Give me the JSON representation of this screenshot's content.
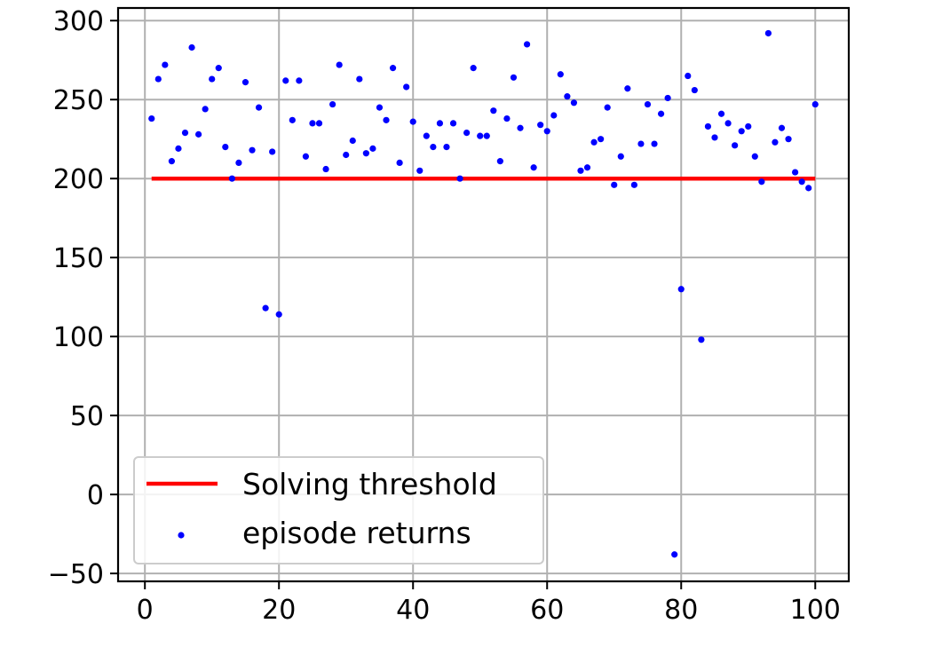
{
  "chart_data": {
    "type": "scatter",
    "title": "",
    "xlabel": "",
    "ylabel": "",
    "xlim": [
      -4,
      105
    ],
    "ylim": [
      -55,
      308
    ],
    "xticks": [
      0,
      20,
      40,
      60,
      80,
      100
    ],
    "yticks": [
      -50,
      0,
      50,
      100,
      150,
      200,
      250,
      300
    ],
    "xtick_labels": [
      "0",
      "20",
      "40",
      "60",
      "80",
      "100"
    ],
    "ytick_labels": [
      "−50",
      "0",
      "50",
      "100",
      "150",
      "200",
      "250",
      "300"
    ],
    "grid": true,
    "legend_position": "lower-left",
    "series": [
      {
        "name": "Solving threshold",
        "kind": "line",
        "color": "#ff0000",
        "x": [
          1,
          100
        ],
        "y": [
          200,
          200
        ]
      },
      {
        "name": "episode returns",
        "kind": "scatter",
        "color": "#0000ff",
        "x": [
          1,
          2,
          3,
          4,
          5,
          6,
          7,
          8,
          9,
          10,
          11,
          12,
          13,
          14,
          15,
          16,
          17,
          18,
          19,
          20,
          21,
          22,
          23,
          24,
          25,
          26,
          27,
          28,
          29,
          30,
          31,
          32,
          33,
          34,
          35,
          36,
          37,
          38,
          39,
          40,
          41,
          42,
          43,
          44,
          45,
          46,
          47,
          48,
          49,
          50,
          51,
          52,
          53,
          54,
          55,
          56,
          57,
          58,
          59,
          60,
          61,
          62,
          63,
          64,
          65,
          66,
          67,
          68,
          69,
          70,
          71,
          72,
          73,
          74,
          75,
          76,
          77,
          78,
          79,
          80,
          81,
          82,
          83,
          84,
          85,
          86,
          87,
          88,
          89,
          90,
          91,
          92,
          93,
          94,
          95,
          96,
          97,
          98,
          99,
          100
        ],
        "y": [
          238,
          263,
          272,
          211,
          219,
          229,
          283,
          228,
          244,
          263,
          270,
          220,
          200,
          210,
          261,
          218,
          245,
          118,
          217,
          114,
          262,
          237,
          262,
          214,
          235,
          235,
          206,
          247,
          272,
          215,
          224,
          263,
          216,
          219,
          245,
          237,
          270,
          210,
          258,
          236,
          205,
          227,
          220,
          235,
          220,
          235,
          200,
          229,
          270,
          227,
          227,
          243,
          211,
          238,
          264,
          232,
          285,
          207,
          234,
          230,
          240,
          266,
          252,
          248,
          205,
          207,
          223,
          225,
          245,
          196,
          214,
          257,
          196,
          222,
          247,
          222,
          241,
          251,
          -38,
          130,
          265,
          256,
          98,
          233,
          226,
          241,
          235,
          221,
          230,
          233,
          214,
          198,
          292,
          223,
          232,
          225,
          204,
          198,
          194,
          247
        ]
      }
    ]
  }
}
